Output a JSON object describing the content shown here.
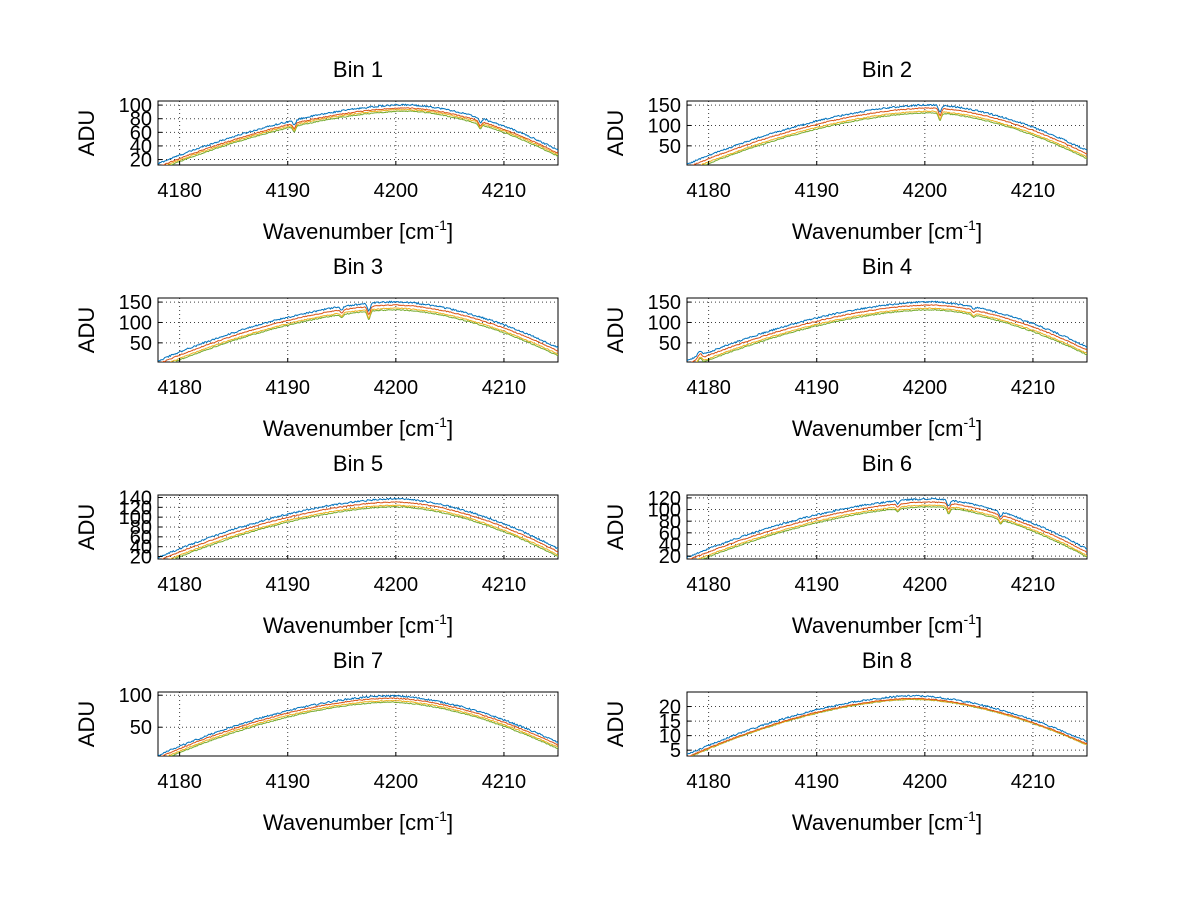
{
  "chart_data": [
    {
      "type": "line",
      "title": "Bin 1",
      "xlabel": "Wavenumber [cm",
      "xlabel_sup": "-1",
      "xlabel_close": "]",
      "ylabel": "ADU",
      "xlim": [
        4178,
        4215
      ],
      "ylim": [
        12,
        106
      ],
      "xticks": [
        4180,
        4190,
        4200,
        4210
      ],
      "yticks": [
        20,
        40,
        60,
        80,
        100
      ],
      "peak_x": 4201,
      "edge_left": 14,
      "edge_right": 34,
      "offsets": [
        0,
        -2,
        -3,
        -4
      ],
      "dips": [
        {
          "x": 4190.6,
          "depth": 8
        },
        {
          "x": 4207.8,
          "depth": 7
        }
      ]
    },
    {
      "type": "line",
      "title": "Bin 2",
      "xlabel": "Wavenumber [cm",
      "xlabel_sup": "-1",
      "xlabel_close": "]",
      "ylabel": "ADU",
      "xlim": [
        4178,
        4215
      ],
      "ylim": [
        3,
        160
      ],
      "xticks": [
        4180,
        4190,
        4200,
        4210
      ],
      "yticks": [
        50,
        100,
        150
      ],
      "peak_x": 4200.5,
      "edge_left": 5,
      "edge_right": 38,
      "offsets": [
        0,
        -2,
        -4,
        -5
      ],
      "dips": [
        {
          "x": 4201.4,
          "depth": 18
        }
      ]
    },
    {
      "type": "line",
      "title": "Bin 3",
      "xlabel": "Wavenumber [cm",
      "xlabel_sup": "-1",
      "xlabel_close": "]",
      "ylabel": "ADU",
      "xlim": [
        4178,
        4215
      ],
      "ylim": [
        3,
        160
      ],
      "xticks": [
        4180,
        4190,
        4200,
        4210
      ],
      "yticks": [
        50,
        100,
        150
      ],
      "peak_x": 4200,
      "edge_left": 6,
      "edge_right": 38,
      "offsets": [
        0,
        -2,
        -4,
        -5
      ],
      "dips": [
        {
          "x": 4197.5,
          "depth": 20
        },
        {
          "x": 4195,
          "depth": 8
        }
      ]
    },
    {
      "type": "line",
      "title": "Bin 4",
      "xlabel": "Wavenumber [cm",
      "xlabel_sup": "-1",
      "xlabel_close": "]",
      "ylabel": "ADU",
      "xlim": [
        4178,
        4215
      ],
      "ylim": [
        3,
        160
      ],
      "xticks": [
        4180,
        4190,
        4200,
        4210
      ],
      "yticks": [
        50,
        100,
        150
      ],
      "peak_x": 4200.5,
      "edge_left": 6,
      "edge_right": 40,
      "offsets": [
        0,
        -2,
        -4,
        -5
      ],
      "dips": [
        {
          "x": 4204.5,
          "depth": 6
        }
      ],
      "bumps": [
        {
          "x": 4179.2,
          "height": 12
        }
      ]
    },
    {
      "type": "line",
      "title": "Bin 5",
      "xlabel": "Wavenumber [cm",
      "xlabel_sup": "-1",
      "xlabel_close": "]",
      "ylabel": "ADU",
      "xlim": [
        4178,
        4215
      ],
      "ylim": [
        15,
        145
      ],
      "xticks": [
        4180,
        4190,
        4200,
        4210
      ],
      "yticks": [
        20,
        40,
        60,
        80,
        100,
        120,
        140
      ],
      "peak_x": 4200,
      "edge_left": 18,
      "edge_right": 36,
      "offsets": [
        0,
        -2,
        -4,
        -5
      ],
      "dips": []
    },
    {
      "type": "line",
      "title": "Bin 6",
      "xlabel": "Wavenumber [cm",
      "xlabel_sup": "-1",
      "xlabel_close": "]",
      "ylabel": "ADU",
      "xlim": [
        4178,
        4215
      ],
      "ylim": [
        15,
        125
      ],
      "xticks": [
        4180,
        4190,
        4200,
        4210
      ],
      "yticks": [
        20,
        40,
        60,
        80,
        100,
        120
      ],
      "peak_x": 4200.5,
      "edge_left": 18,
      "edge_right": 32,
      "offsets": [
        0,
        -2,
        -4,
        -5
      ],
      "dips": [
        {
          "x": 4202.2,
          "depth": 10
        },
        {
          "x": 4207,
          "depth": 8
        },
        {
          "x": 4197.5,
          "depth": 5
        }
      ]
    },
    {
      "type": "line",
      "title": "Bin 7",
      "xlabel": "Wavenumber [cm",
      "xlabel_sup": "-1",
      "xlabel_close": "]",
      "ylabel": "ADU",
      "xlim": [
        4178,
        4215
      ],
      "ylim": [
        5,
        105
      ],
      "xticks": [
        4180,
        4190,
        4200,
        4210
      ],
      "yticks": [
        50,
        100
      ],
      "peak_x": 4199.5,
      "edge_left": 6,
      "edge_right": 26,
      "offsets": [
        0,
        -1.5,
        -3,
        -4
      ],
      "dips": []
    },
    {
      "type": "line",
      "title": "Bin 8",
      "xlabel": "Wavenumber [cm",
      "xlabel_sup": "-1",
      "xlabel_close": "]",
      "ylabel": "ADU",
      "xlim": [
        4178,
        4215
      ],
      "ylim": [
        3,
        25
      ],
      "xticks": [
        4180,
        4190,
        4200,
        4210
      ],
      "yticks": [
        5,
        10,
        15,
        20
      ],
      "peak_x": 4199,
      "edge_left": 3.5,
      "edge_right": 8,
      "offsets": [
        0,
        -1.6,
        -2.0,
        -2.2
      ],
      "dips": []
    }
  ],
  "series_colors": [
    "#0072bd",
    "#d95319",
    "#edb120",
    "#77ac30"
  ]
}
